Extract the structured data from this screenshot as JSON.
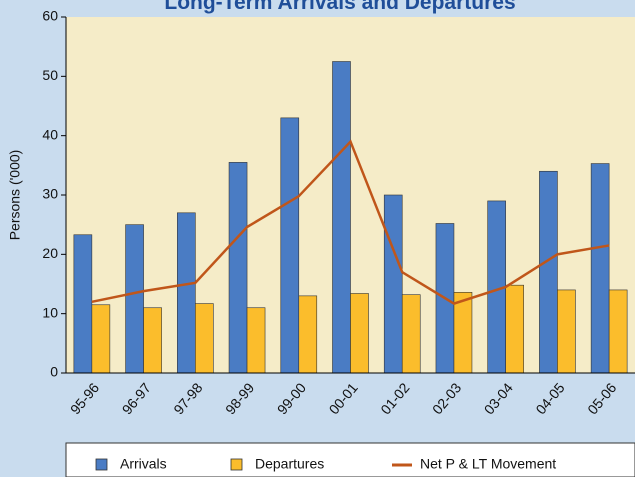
{
  "chart_data": {
    "type": "bar",
    "title": "Long-Term Arrivals and Departures",
    "y_label": "Persons ('000)",
    "categories": [
      "95-96",
      "96-97",
      "97-98",
      "98-99",
      "99-00",
      "00-01",
      "01-02",
      "02-03",
      "03-04",
      "04-05",
      "05-06"
    ],
    "series": [
      {
        "name": "Arrivals",
        "color": "#4a7cc4",
        "kind": "bar",
        "values": [
          23.3,
          25,
          27,
          35.5,
          43,
          52.5,
          30,
          25.2,
          29,
          34,
          35.3
        ]
      },
      {
        "name": "Departures",
        "color": "#fbbd2c",
        "kind": "bar",
        "values": [
          11.5,
          11,
          11.7,
          11,
          13,
          13.4,
          13.2,
          13.6,
          14.8,
          14,
          14
        ]
      },
      {
        "name": "Net P & LT Movement",
        "color": "#c0561a",
        "kind": "line",
        "values": [
          12,
          13.8,
          15.2,
          24.6,
          29.8,
          39,
          17,
          11.7,
          14.5,
          20,
          21.5
        ]
      }
    ],
    "ylim": [
      0,
      60
    ],
    "yticks": [
      0,
      10,
      20,
      30,
      40,
      50,
      60
    ],
    "legend": "bottom"
  }
}
